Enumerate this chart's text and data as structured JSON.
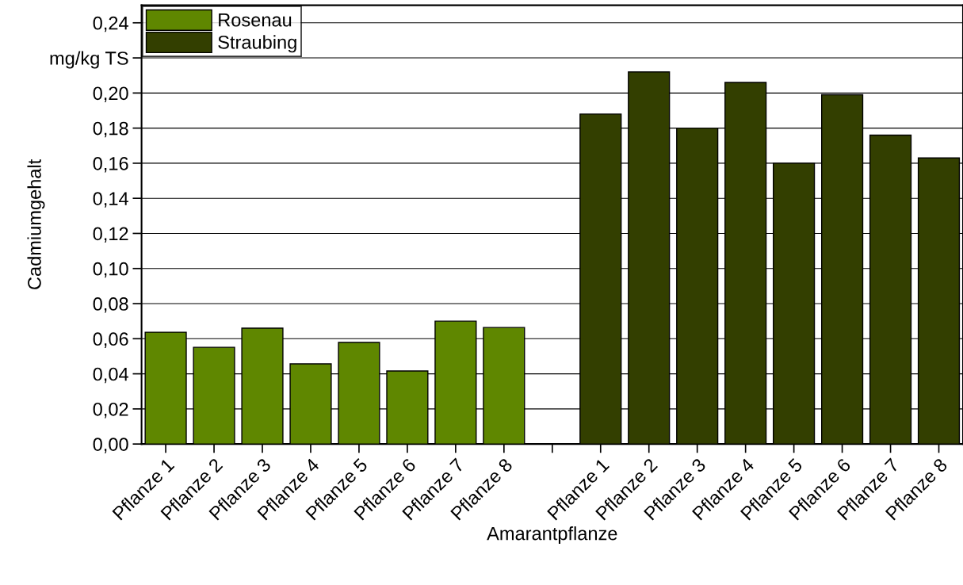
{
  "chart_data": {
    "type": "bar",
    "xlabel": "Amarantpflanze",
    "ylabel": "Cadmiumgehalt",
    "categories": [
      "Pflanze 1",
      "Pflanze 2",
      "Pflanze 3",
      "Pflanze 4",
      "Pflanze 5",
      "Pflanze 6",
      "Pflanze 7",
      "Pflanze 8",
      null,
      "Pflanze 1",
      "Pflanze 2",
      "Pflanze 3",
      "Pflanze 4",
      "Pflanze 5",
      "Pflanze 6",
      "Pflanze 7",
      "Pflanze 8"
    ],
    "series": [
      {
        "name": "Rosenau",
        "color": "#5f8700",
        "values": [
          0.0637,
          0.0551,
          0.066,
          0.0457,
          0.0579,
          0.0416,
          0.07,
          0.0664,
          null,
          null,
          null,
          null,
          null,
          null,
          null,
          null,
          null
        ]
      },
      {
        "name": "Straubing",
        "color": "#333f00",
        "values": [
          null,
          null,
          null,
          null,
          null,
          null,
          null,
          null,
          null,
          0.188,
          0.212,
          0.18,
          0.206,
          0.16,
          0.199,
          0.176,
          0.163
        ]
      }
    ],
    "ylim": [
      0,
      0.25
    ],
    "yticks": [
      {
        "value": 0,
        "label": "0,00"
      },
      {
        "value": 0.02,
        "label": "0,02"
      },
      {
        "value": 0.04,
        "label": "0,04"
      },
      {
        "value": 0.06,
        "label": "0,06"
      },
      {
        "value": 0.08,
        "label": "0,08"
      },
      {
        "value": 0.1,
        "label": "0,10"
      },
      {
        "value": 0.12,
        "label": "0,12"
      },
      {
        "value": 0.14,
        "label": "0,14"
      },
      {
        "value": 0.16,
        "label": "0,16"
      },
      {
        "value": 0.18,
        "label": "0,18"
      },
      {
        "value": 0.2,
        "label": "0,20"
      },
      {
        "value": 0.22,
        "label": "mg/kg TS"
      },
      {
        "value": 0.24,
        "label": "0,24"
      }
    ],
    "grid": "y",
    "legend": "top left"
  }
}
